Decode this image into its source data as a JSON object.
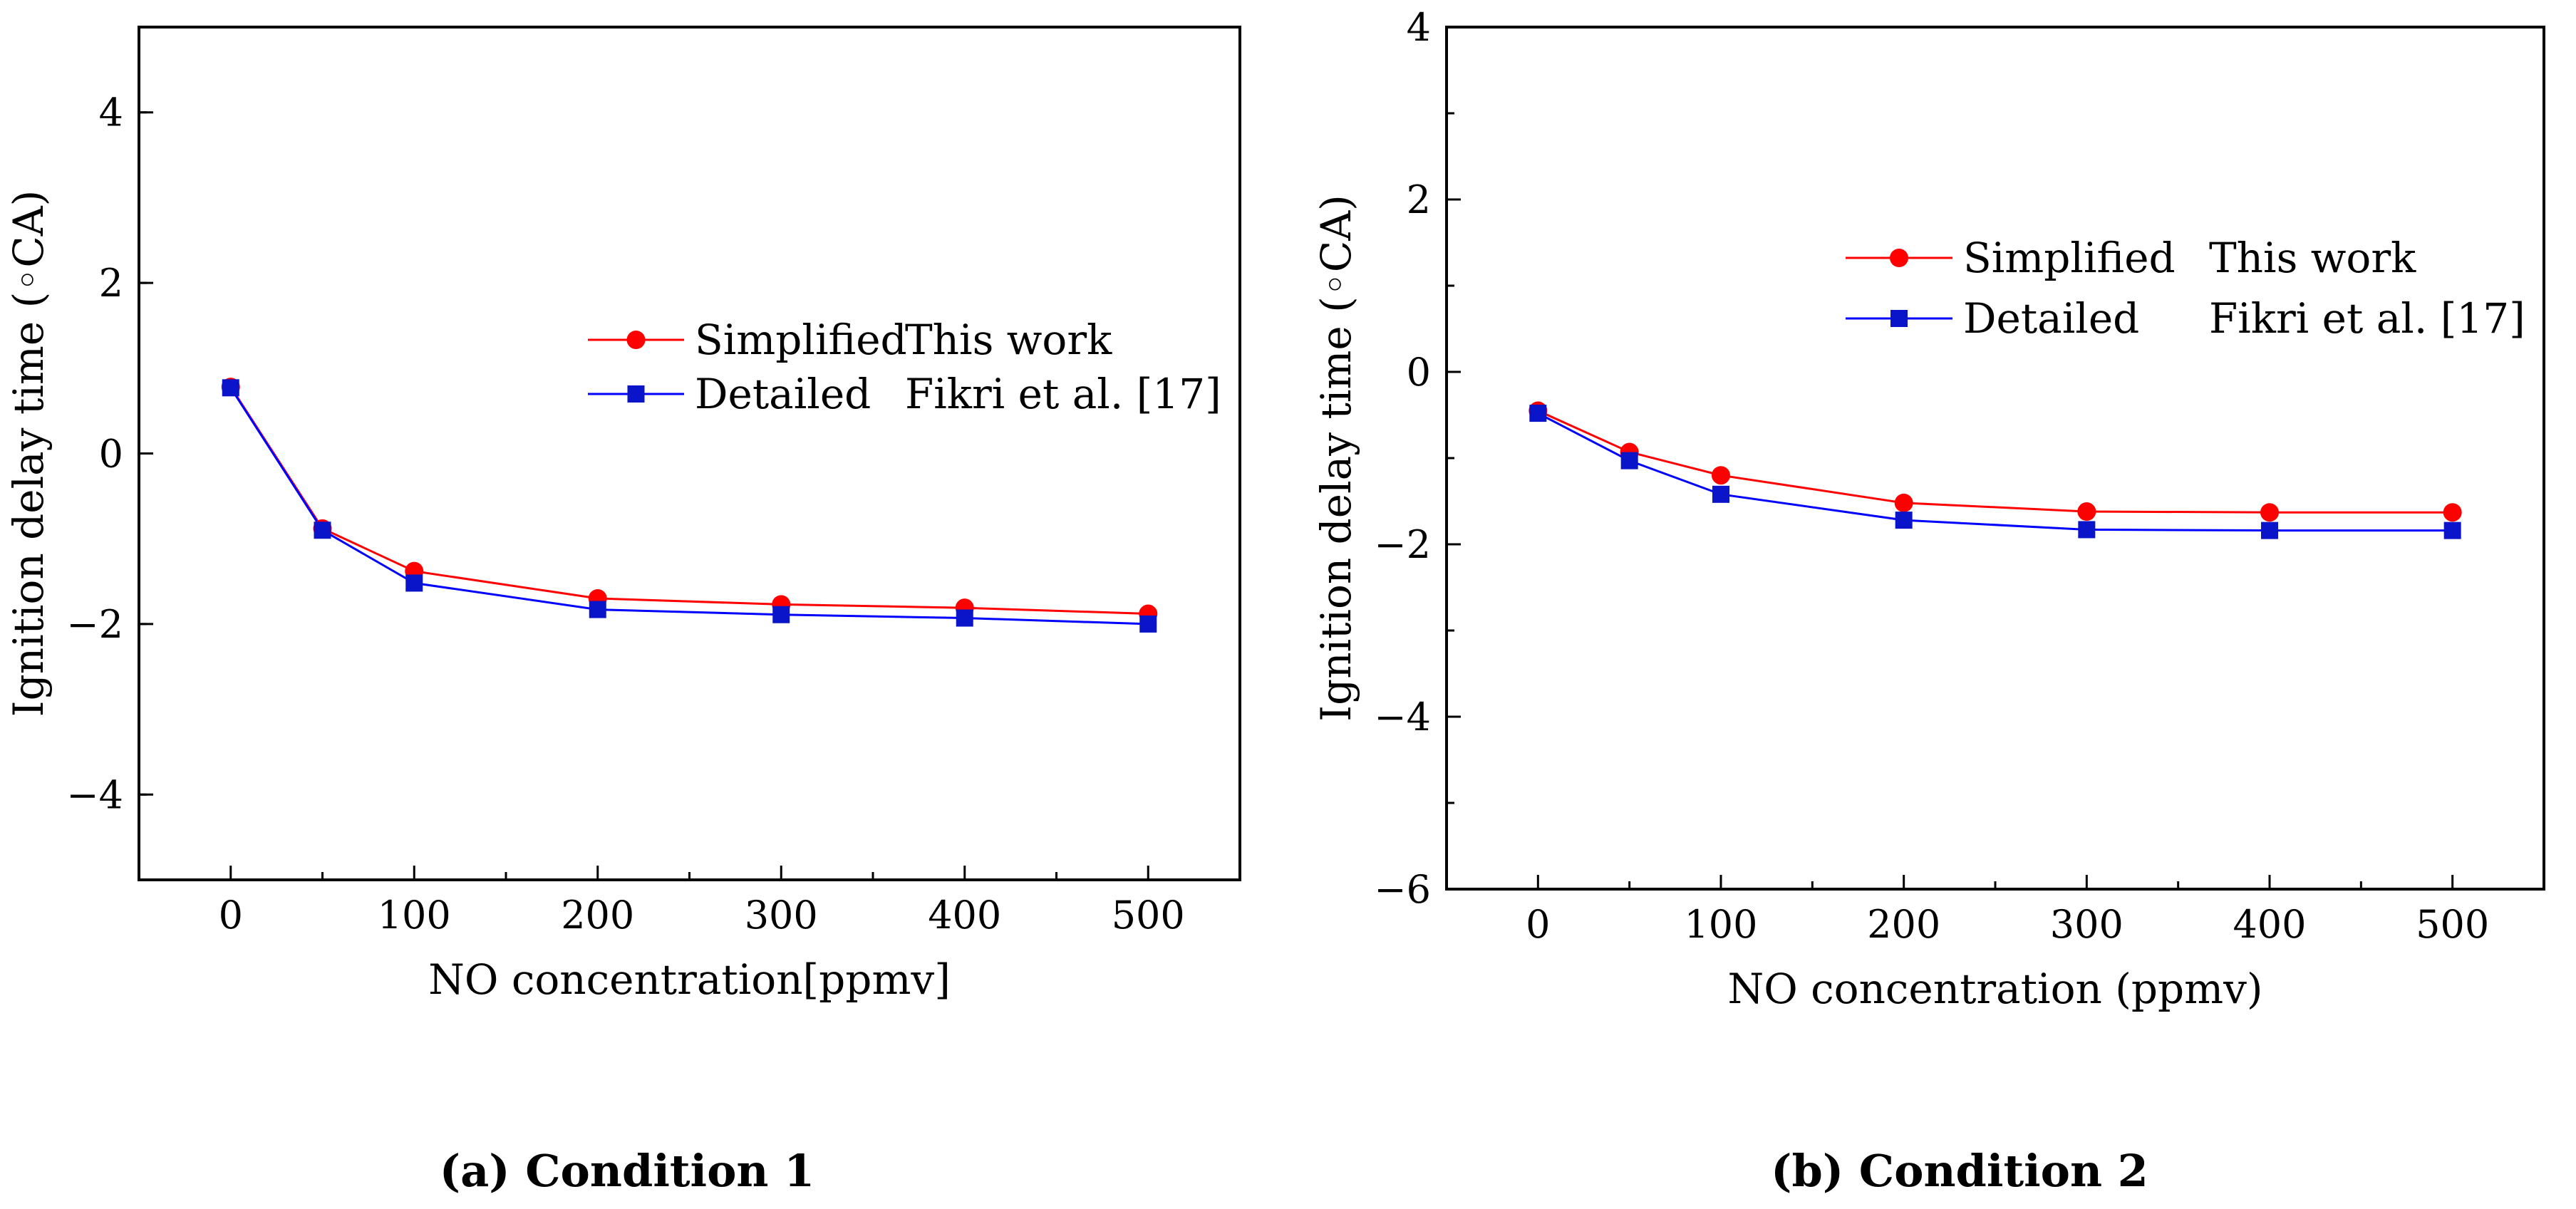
{
  "colors": {
    "simplified": "#ff0000",
    "detailed": "#0000ff",
    "detailed_marker": "#0a14c8"
  },
  "chart_data": [
    {
      "type": "line",
      "caption": "(a) Condition 1",
      "xlabel": "NO concentration[ppmv]",
      "ylabel": "Ignition delay time (◦CA)",
      "xlim": [
        -50,
        550
      ],
      "ylim": [
        -5,
        5
      ],
      "xticks": [
        0,
        100,
        200,
        300,
        400,
        500
      ],
      "xtick_labels": [
        "0",
        "100",
        "200",
        "300",
        "400",
        "500"
      ],
      "yticks": [
        -4,
        -2,
        0,
        2,
        4
      ],
      "ytick_labels": [
        "−4",
        "−2",
        "0",
        "2",
        "4"
      ],
      "grid": false,
      "legend_position": "right",
      "series": [
        {
          "label": "Simplified",
          "source": "This work",
          "marker": "circle",
          "color": "#ff0000",
          "x": [
            0,
            50,
            100,
            200,
            300,
            400,
            500
          ],
          "y": [
            0.78,
            -0.88,
            -1.38,
            -1.7,
            -1.77,
            -1.81,
            -1.88
          ]
        },
        {
          "label": "Detailed",
          "source": "Fikri et al. [17]",
          "marker": "square",
          "color": "#0000ff",
          "x": [
            0,
            50,
            100,
            200,
            300,
            400,
            500
          ],
          "y": [
            0.77,
            -0.9,
            -1.52,
            -1.83,
            -1.89,
            -1.93,
            -2.0
          ]
        }
      ]
    },
    {
      "type": "line",
      "caption": "(b) Condition 2",
      "xlabel": "NO concentration (ppmv)",
      "ylabel": "Ignition delay time (◦CA)",
      "xlim": [
        -50,
        550
      ],
      "ylim": [
        -6,
        4
      ],
      "xticks": [
        0,
        100,
        200,
        300,
        400,
        500
      ],
      "xtick_labels": [
        "0",
        "100",
        "200",
        "300",
        "400",
        "500"
      ],
      "yticks": [
        -6,
        -4,
        -2,
        0,
        2,
        4
      ],
      "ytick_labels": [
        "−6",
        "−4",
        "−2",
        "0",
        "2",
        "4"
      ],
      "grid": false,
      "legend_position": "top-right",
      "series": [
        {
          "label": "Simplified",
          "source": "This work",
          "marker": "circle",
          "color": "#ff0000",
          "x": [
            0,
            50,
            100,
            200,
            300,
            400,
            500
          ],
          "y": [
            -0.45,
            -0.93,
            -1.2,
            -1.52,
            -1.62,
            -1.63,
            -1.63
          ]
        },
        {
          "label": "Detailed",
          "source": "Fikri et al. [17]",
          "marker": "square",
          "color": "#0000ff",
          "x": [
            0,
            50,
            100,
            200,
            300,
            400,
            500
          ],
          "y": [
            -0.48,
            -1.03,
            -1.42,
            -1.72,
            -1.83,
            -1.84,
            -1.84
          ]
        }
      ]
    }
  ]
}
